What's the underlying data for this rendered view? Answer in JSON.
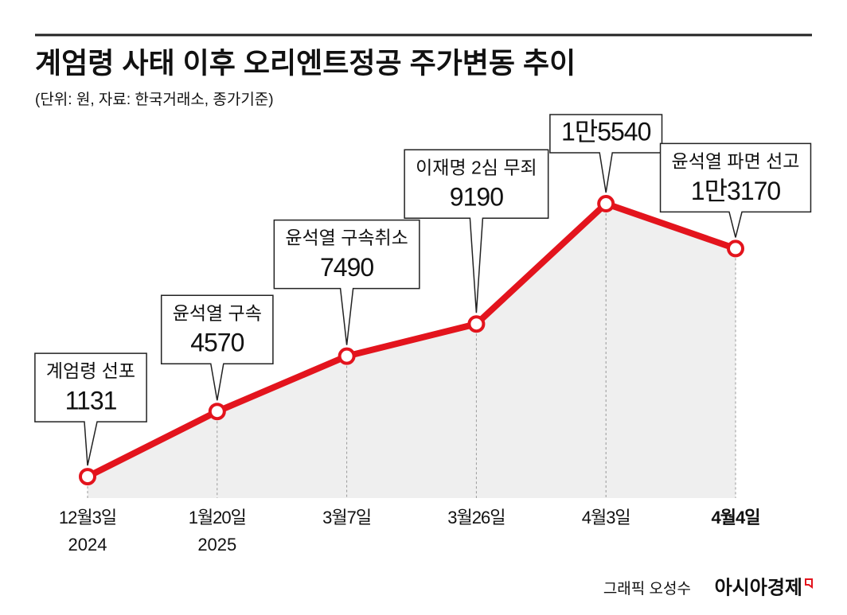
{
  "chart_data": {
    "type": "line",
    "title": "계엄령 사태 이후 오리엔트정공 주가변동 추이",
    "subtitle": "(단위: 원, 자료: 한국거래소, 종가기준)",
    "categories": [
      "12월3일",
      "1월20일",
      "3월7일",
      "3월26일",
      "4월3일",
      "4월4일"
    ],
    "category_years": [
      "2024",
      "2025",
      null,
      null,
      null,
      null
    ],
    "values": [
      1131,
      4570,
      7490,
      9190,
      15540,
      13170
    ],
    "value_labels": [
      "1131",
      "4570",
      "7490",
      "9190",
      "1만5540",
      "1만3170"
    ],
    "annotations": [
      "계엄령 선포",
      "윤석열 구속",
      "윤석열 구속취소",
      "이재명 2심 무죄",
      null,
      "윤석열 파면 선고"
    ],
    "color": "#e3141d",
    "area_color": "#efefef",
    "highlight_last_category": true,
    "credit": "그래픽 오성수",
    "source_brand": "아시아경제"
  }
}
